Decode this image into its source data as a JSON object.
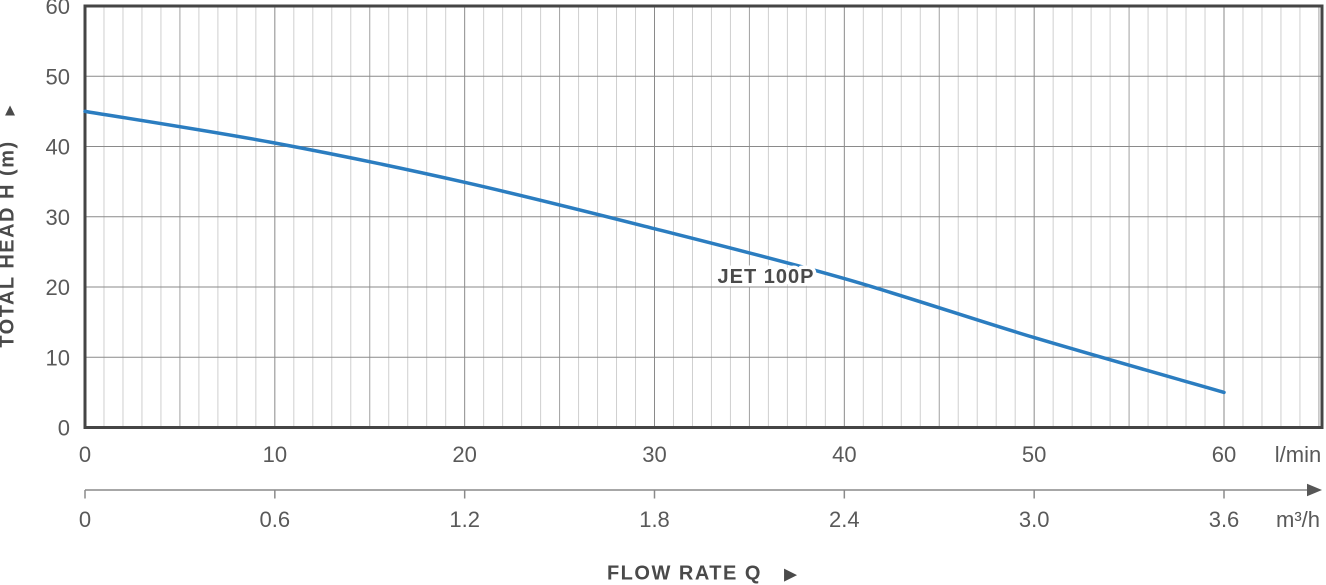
{
  "chart_data": {
    "type": "line",
    "title": "",
    "series": [
      {
        "name": "JET 100P",
        "color": "#2b7dc0",
        "x_lmin": [
          0,
          10,
          20,
          30,
          40,
          50,
          60
        ],
        "head_m": [
          45,
          40.5,
          34.9,
          28.3,
          21.2,
          12.8,
          5
        ]
      }
    ],
    "xlabel": "FLOW RATE Q",
    "x_axis_primary": {
      "unit": "l/min",
      "tick_labels": [
        "0",
        "10",
        "20",
        "30",
        "40",
        "50",
        "60"
      ],
      "tick_values": [
        0,
        10,
        20,
        30,
        40,
        50,
        60
      ],
      "grid_max_lmin": 65
    },
    "x_axis_secondary": {
      "unit": "m³/h",
      "tick_labels": [
        "0",
        "0.6",
        "1.2",
        "1.8",
        "2.4",
        "3.0",
        "3.6"
      ],
      "tick_values_lmin": [
        0,
        10,
        20,
        30,
        40,
        50,
        60
      ]
    },
    "y_axis": {
      "label": "TOTAL HEAD H (m)",
      "tick_labels": [
        "0",
        "10",
        "20",
        "30",
        "40",
        "50",
        "60"
      ],
      "tick_values": [
        0,
        10,
        20,
        30,
        40,
        50,
        60
      ],
      "range": [
        0,
        60
      ]
    },
    "grid": {
      "vertical_minor_step_lmin": 1,
      "vertical_major_step_lmin": 5,
      "horizontal_step_m": 10,
      "horizontal_minor": false
    },
    "legend_position": "on-curve"
  },
  "icons": {
    "up_arrow": "▲",
    "right_arrow": "▶"
  },
  "colors": {
    "curve": "#2b7dc0",
    "grid_minor": "#cfcfcf",
    "grid_mid": "#a0a0a0",
    "grid_major": "#8a8a8a",
    "border": "#454545",
    "tick_text": "#595959",
    "title_text": "#4a4a4a",
    "axis2_line": "#8a8a8a",
    "axis2_arrow": "#565656"
  }
}
